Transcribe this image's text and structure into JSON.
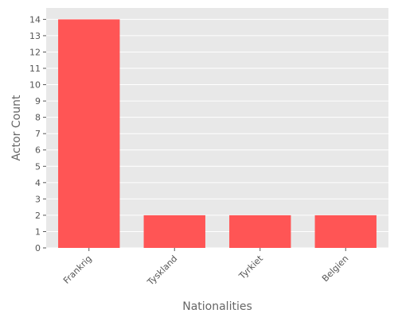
{
  "chart_data": {
    "type": "bar",
    "title": "",
    "xlabel": "Nationalities",
    "ylabel": "Actor Count",
    "categories": [
      "Frankrig",
      "Tyskland",
      "Tyrkiet",
      "Belgien"
    ],
    "values": [
      14,
      2,
      2,
      2
    ],
    "ylim": [
      0,
      14.7
    ],
    "yticks": [
      0,
      1,
      2,
      3,
      4,
      5,
      6,
      7,
      8,
      9,
      10,
      11,
      12,
      13,
      14
    ],
    "grid": true,
    "legend": "none",
    "x_tick_rotation_deg": 45
  },
  "colors": {
    "bar": "#ff5555",
    "plot_background": "#e8e8e8",
    "grid": "#ffffff",
    "text": "#555555",
    "axis_label": "#666666"
  }
}
